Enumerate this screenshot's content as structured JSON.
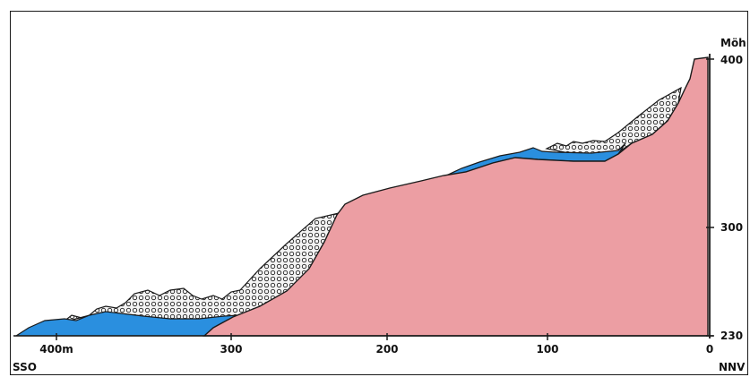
{
  "vertical_axis": {
    "title": "Möh",
    "ticks": [
      {
        "value": 400,
        "label": "400"
      },
      {
        "value": 300,
        "label": "300"
      },
      {
        "value": 230,
        "label": "230"
      }
    ]
  },
  "horizontal_axis": {
    "ticks": [
      {
        "value": 400,
        "label": "400m"
      },
      {
        "value": 300,
        "label": "300"
      },
      {
        "value": 200,
        "label": "200"
      },
      {
        "value": 100,
        "label": "100"
      },
      {
        "value": 0,
        "label": "0"
      }
    ]
  },
  "direction_labels": {
    "left": "SSO",
    "right": "NNV"
  },
  "colors": {
    "bedrock": "#ec9ea3",
    "water": "#2a8fdf",
    "debris_fill": "#f4f4f4",
    "debris_pattern": "#222222",
    "outline": "#1a1a1a"
  }
}
